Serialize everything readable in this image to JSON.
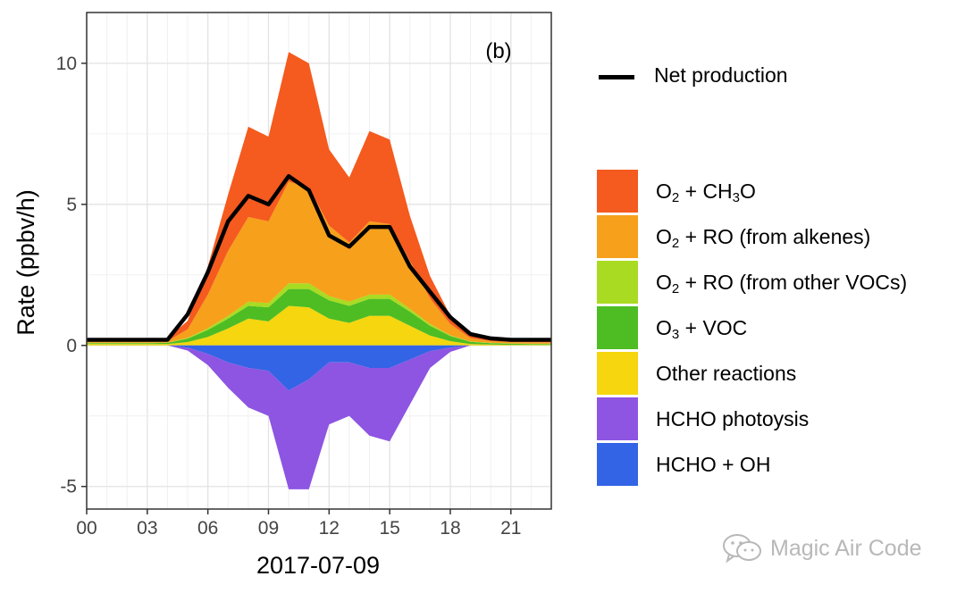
{
  "chart_data": {
    "type": "area",
    "panel_label": "(b)",
    "xlabel": "2017-07-09",
    "ylabel": "Rate (ppbv/h)",
    "xlim": [
      0,
      23
    ],
    "ylim": [
      -5.8,
      11.8
    ],
    "x_ticks": [
      0,
      3,
      6,
      9,
      12,
      15,
      18,
      21
    ],
    "x_tick_labels": [
      "00",
      "03",
      "06",
      "09",
      "12",
      "15",
      "18",
      "21"
    ],
    "y_ticks": [
      -5,
      0,
      5,
      10
    ],
    "y_tick_labels": [
      "-5",
      "0",
      "5",
      "10"
    ],
    "grid": true,
    "legend_position": "right",
    "x": [
      0,
      1,
      2,
      3,
      4,
      5,
      6,
      7,
      8,
      9,
      10,
      11,
      12,
      13,
      14,
      15,
      16,
      17,
      18,
      19,
      20,
      21,
      22,
      23
    ],
    "positive_series": [
      {
        "name": "Other reactions",
        "color": "#F5D60F",
        "values": [
          0.05,
          0.05,
          0.05,
          0.05,
          0.05,
          0.12,
          0.3,
          0.6,
          0.95,
          0.85,
          1.4,
          1.35,
          0.95,
          0.8,
          1.05,
          1.05,
          0.7,
          0.35,
          0.15,
          0.05,
          0.03,
          0.02,
          0.02,
          0.02
        ]
      },
      {
        "name": "O3 + VOC",
        "color": "#4DBD23",
        "values": [
          0.03,
          0.03,
          0.03,
          0.03,
          0.04,
          0.12,
          0.25,
          0.35,
          0.45,
          0.5,
          0.6,
          0.65,
          0.65,
          0.6,
          0.6,
          0.6,
          0.5,
          0.35,
          0.18,
          0.08,
          0.05,
          0.04,
          0.03,
          0.03
        ]
      },
      {
        "name": "O2 + RO (from other VOCs)",
        "color": "#A9DB22",
        "values": [
          0.01,
          0.01,
          0.01,
          0.01,
          0.01,
          0.03,
          0.06,
          0.1,
          0.15,
          0.15,
          0.2,
          0.2,
          0.15,
          0.15,
          0.15,
          0.15,
          0.1,
          0.06,
          0.03,
          0.01,
          0.01,
          0.01,
          0.01,
          0.01
        ]
      },
      {
        "name": "O2 + RO (from alkenes)",
        "color": "#F6A01B",
        "values": [
          0.05,
          0.05,
          0.05,
          0.05,
          0.05,
          0.3,
          1.2,
          2.3,
          3.0,
          2.9,
          3.6,
          3.4,
          2.5,
          2.1,
          2.6,
          2.5,
          1.7,
          0.9,
          0.4,
          0.12,
          0.06,
          0.05,
          0.05,
          0.05
        ]
      },
      {
        "name": "O2 + CH3O",
        "color": "#F55A1E",
        "values": [
          0.1,
          0.1,
          0.1,
          0.1,
          0.1,
          0.3,
          1.0,
          2.0,
          3.2,
          3.0,
          4.6,
          4.4,
          2.7,
          2.3,
          3.2,
          3.0,
          1.6,
          0.8,
          0.3,
          0.1,
          0.06,
          0.05,
          0.05,
          0.05
        ]
      }
    ],
    "negative_series": [
      {
        "name": "HCHO + OH",
        "color": "#3364E5",
        "values": [
          0,
          0,
          0,
          0,
          0,
          -0.08,
          -0.3,
          -0.6,
          -0.8,
          -0.9,
          -1.6,
          -1.2,
          -0.6,
          -0.6,
          -0.8,
          -0.8,
          -0.5,
          -0.2,
          -0.08,
          0,
          0,
          0,
          0,
          0
        ]
      },
      {
        "name": "HCHO photoysis",
        "color": "#8D55E2",
        "values": [
          0,
          0,
          0,
          0,
          0,
          -0.1,
          -0.4,
          -0.9,
          -1.4,
          -1.6,
          -3.5,
          -3.9,
          -2.2,
          -1.9,
          -2.4,
          -2.6,
          -1.6,
          -0.6,
          -0.15,
          0,
          0,
          0,
          0,
          0
        ]
      }
    ],
    "net_production": {
      "name": "Net production",
      "color": "#000000",
      "values": [
        0.2,
        0.2,
        0.2,
        0.2,
        0.2,
        1.1,
        2.6,
        4.4,
        5.3,
        5.0,
        6.0,
        5.5,
        3.9,
        3.5,
        4.2,
        4.2,
        2.8,
        1.9,
        1.0,
        0.4,
        0.25,
        0.2,
        0.2,
        0.2
      ]
    }
  },
  "legend": {
    "net_label": "Net production",
    "items": [
      {
        "key": "ch3o",
        "color": "#F55A1E",
        "label": "O2 + CH3O"
      },
      {
        "key": "alkenes",
        "color": "#F6A01B",
        "label": "O2 + RO (from alkenes)"
      },
      {
        "key": "other_vocs",
        "color": "#A9DB22",
        "label": "O2 + RO (from other VOCs)"
      },
      {
        "key": "o3_voc",
        "color": "#4DBD23",
        "label": "O3 + VOC"
      },
      {
        "key": "other",
        "color": "#F5D60F",
        "label": "Other reactions"
      },
      {
        "key": "photolysis",
        "color": "#8D55E2",
        "label": "HCHO photoysis"
      },
      {
        "key": "oh",
        "color": "#3364E5",
        "label": "HCHO + OH"
      }
    ]
  },
  "watermark": {
    "text": "Magic Air Code",
    "icon": "wechat-icon"
  }
}
